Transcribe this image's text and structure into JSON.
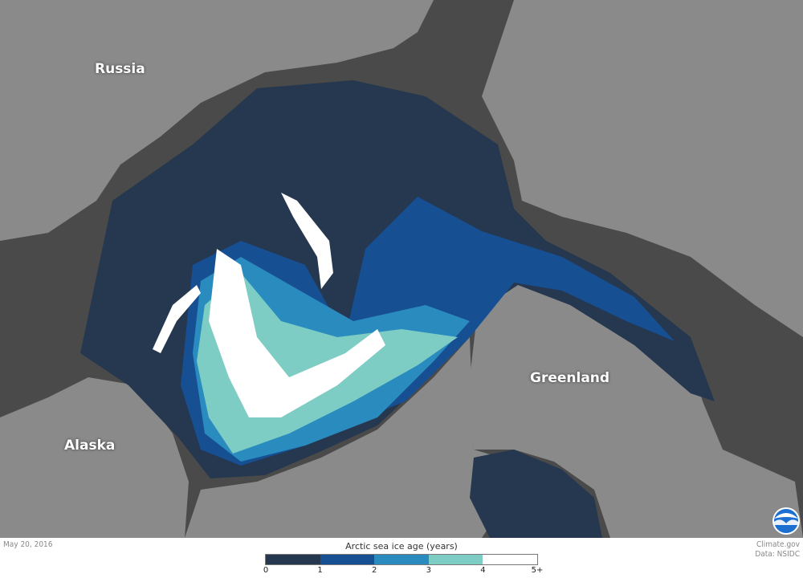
{
  "labels": {
    "russia": "Russia",
    "greenland": "Greenland",
    "alaska": "Alaska"
  },
  "footer": {
    "date": "May 20, 2016",
    "credit": "Climate.gov",
    "source": "Data: NSIDC",
    "logo_text": "NOAA"
  },
  "legend": {
    "title": "Arctic sea ice age (years)",
    "bins": [
      {
        "range": "0-1",
        "color": "#253850"
      },
      {
        "range": "1-2",
        "color": "#174f93"
      },
      {
        "range": "2-3",
        "color": "#2a8bbf"
      },
      {
        "range": "3-4",
        "color": "#7ecdc4"
      },
      {
        "range": "4-5+",
        "color": "#ffffff"
      }
    ],
    "ticks": [
      "0",
      "1",
      "2",
      "3",
      "4",
      "5+"
    ]
  },
  "colors": {
    "land": "#8a8a8a",
    "open_water": "#4a4a4a"
  }
}
